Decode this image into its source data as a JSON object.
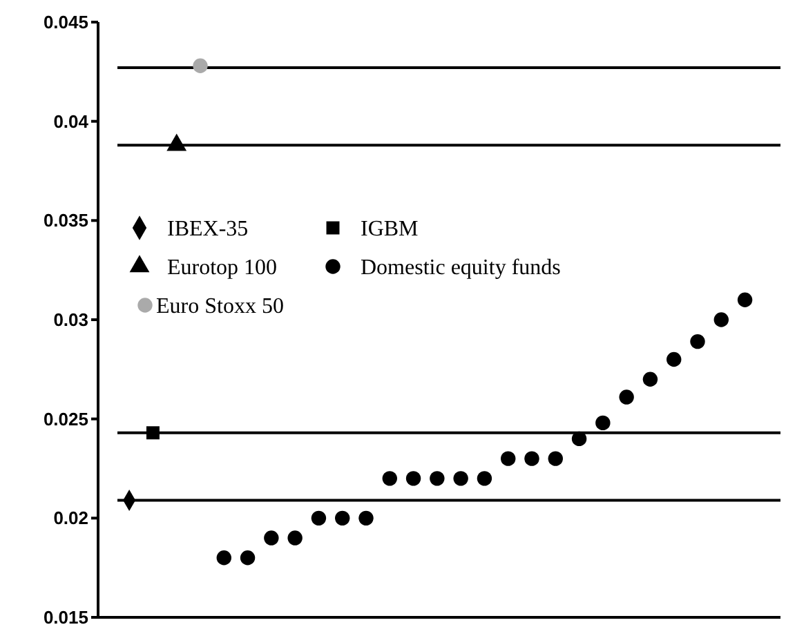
{
  "chart_data": {
    "type": "scatter",
    "categories": [
      null,
      null,
      null,
      null,
      null,
      null,
      null,
      null,
      null,
      null,
      null,
      null,
      null,
      null,
      null,
      null,
      null,
      null,
      null,
      null,
      null,
      null,
      null,
      null,
      null,
      null,
      null,
      null
    ],
    "series": [
      {
        "name": "IBEX-35",
        "color": "#000000",
        "marker": "diamond",
        "values": [
          0.0209,
          null,
          null,
          null,
          null,
          null,
          null,
          null,
          null,
          null,
          null,
          null,
          null,
          null,
          null,
          null,
          null,
          null,
          null,
          null,
          null,
          null,
          null,
          null,
          null,
          null,
          null,
          null
        ]
      },
      {
        "name": "IGBM",
        "color": "#000000",
        "marker": "square",
        "values": [
          null,
          0.0243,
          null,
          null,
          null,
          null,
          null,
          null,
          null,
          null,
          null,
          null,
          null,
          null,
          null,
          null,
          null,
          null,
          null,
          null,
          null,
          null,
          null,
          null,
          null,
          null,
          null,
          null
        ]
      },
      {
        "name": "Eurotop 100",
        "color": "#000000",
        "marker": "triangle",
        "values": [
          null,
          null,
          0.0388,
          null,
          null,
          null,
          null,
          null,
          null,
          null,
          null,
          null,
          null,
          null,
          null,
          null,
          null,
          null,
          null,
          null,
          null,
          null,
          null,
          null,
          null,
          null,
          null,
          null
        ]
      },
      {
        "name": "Domestic equity funds",
        "color": "#000000",
        "marker": "circle",
        "values": [
          null,
          null,
          null,
          null,
          0.018,
          0.018,
          0.019,
          0.019,
          0.02,
          0.02,
          0.02,
          0.022,
          0.022,
          0.022,
          0.022,
          0.022,
          0.023,
          0.023,
          0.023,
          0.024,
          0.0248,
          0.0261,
          0.027,
          0.028,
          0.0289,
          0.03,
          0.031,
          null
        ]
      },
      {
        "name": "Euro Stoxx 50",
        "color": "#aaaaaa",
        "marker": "circle",
        "values": [
          null,
          null,
          null,
          0.0428,
          null,
          null,
          null,
          null,
          null,
          null,
          null,
          null,
          null,
          null,
          null,
          null,
          null,
          null,
          null,
          null,
          null,
          null,
          null,
          null,
          null,
          null,
          null,
          null
        ]
      }
    ],
    "ylim": [
      0.015,
      0.045
    ],
    "yticks": [
      0.015,
      0.02,
      0.025,
      0.03,
      0.035,
      0.04,
      0.045
    ],
    "ref_lines": [
      {
        "axis": "y",
        "value": 0.0209,
        "color": "#000000"
      },
      {
        "axis": "y",
        "value": 0.0243,
        "color": "#000000"
      },
      {
        "axis": "y",
        "value": 0.0388,
        "color": "#000000"
      },
      {
        "axis": "y",
        "value": 0.0427,
        "color": "#000000"
      }
    ],
    "legend": "left",
    "grid": false,
    "tick_labels": "y"
  }
}
